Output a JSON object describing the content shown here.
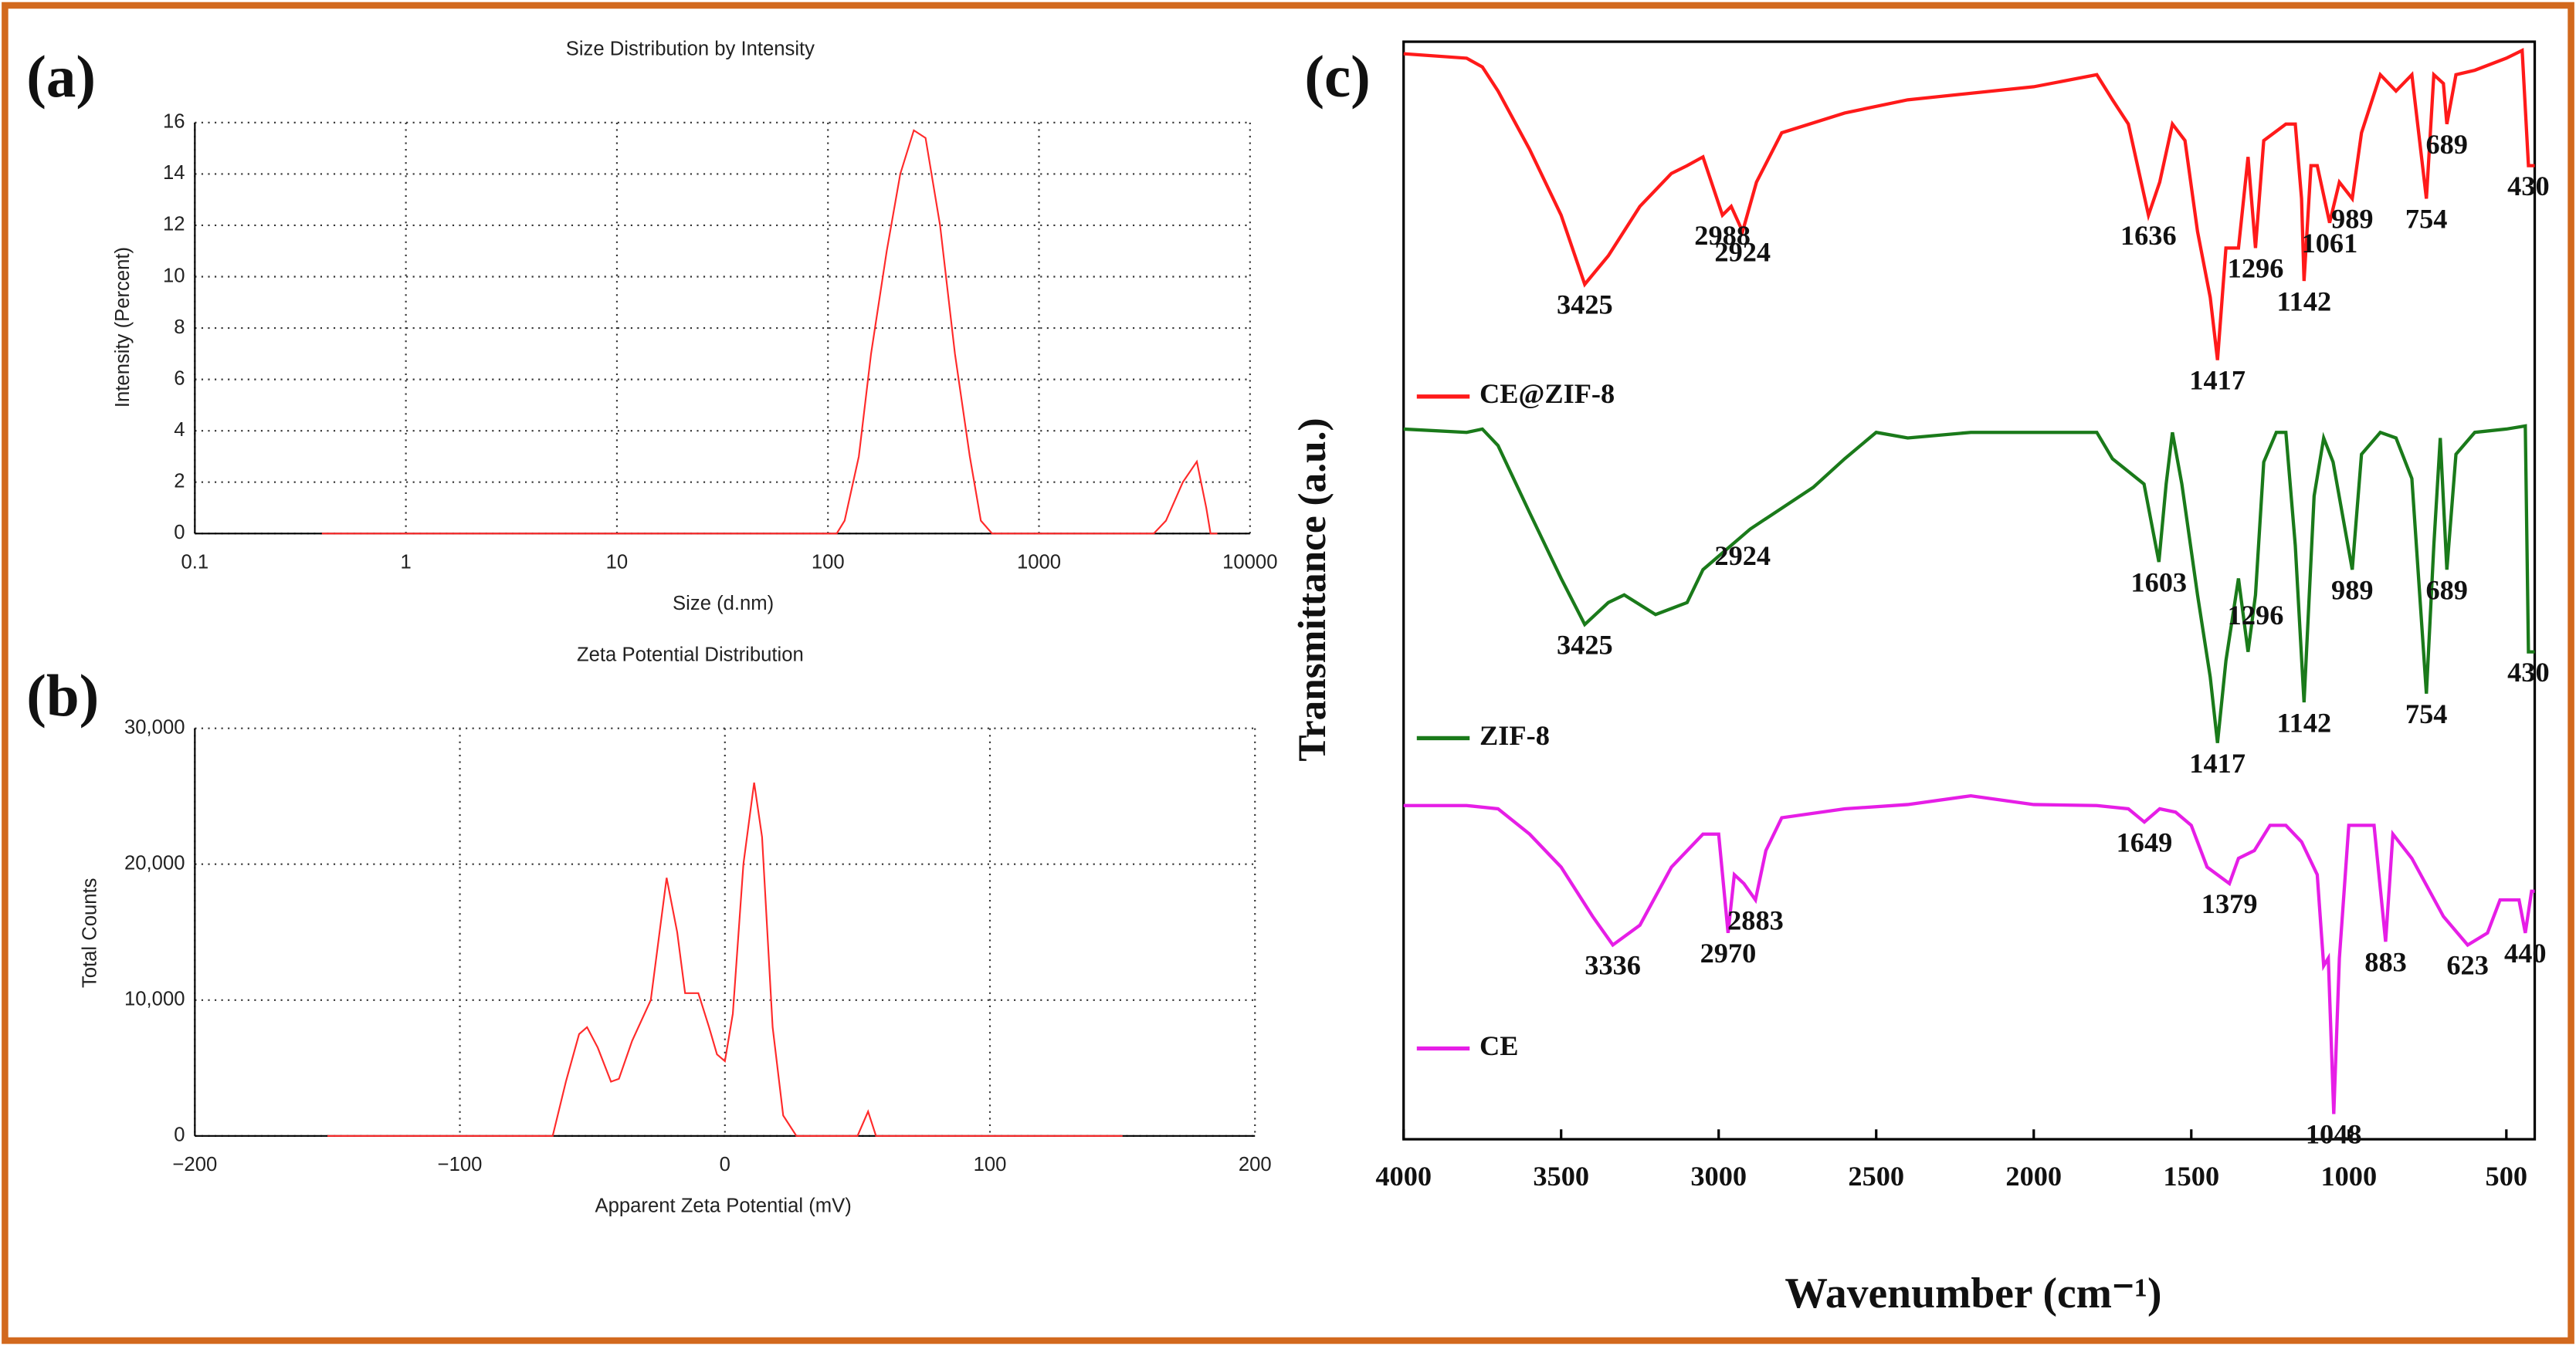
{
  "chart_data": [
    {
      "type": "line",
      "panel": "(a)",
      "title": "Size Distribution by Intensity",
      "x_label": "Size (d.nm)",
      "y_label": "Intensity (Percent)",
      "xscale": "log",
      "xlim": [
        0.1,
        10000
      ],
      "xticks": [
        0.1,
        1,
        10,
        100,
        1000,
        10000
      ],
      "ylim": [
        0,
        16
      ],
      "yticks": [
        0,
        2,
        4,
        6,
        8,
        10,
        12,
        14,
        16
      ],
      "grid": true,
      "color": "#ff2a2a",
      "x": [
        0.4,
        1,
        10,
        110,
        120,
        140,
        160,
        190,
        220,
        255,
        290,
        340,
        400,
        470,
        530,
        600,
        1000,
        3500,
        4000,
        4800,
        5600,
        6200,
        6500,
        7000
      ],
      "values": [
        0,
        0,
        0,
        0,
        0.5,
        3,
        7,
        11,
        14,
        15.7,
        15.4,
        12,
        7,
        3,
        0.5,
        0,
        0,
        0,
        0.5,
        2,
        2.8,
        1,
        0,
        0
      ]
    },
    {
      "type": "line",
      "panel": "(b)",
      "title": "Zeta Potential Distribution",
      "x_label": "Apparent Zeta Potential (mV)",
      "y_label": "Total Counts",
      "xlim": [
        -200,
        200
      ],
      "xticks": [
        {
          "value": -200,
          "label": "−200"
        },
        {
          "value": -100,
          "label": "−100"
        },
        0,
        100,
        200
      ],
      "ylim": [
        0,
        30000
      ],
      "yticks": [
        0,
        {
          "value": 10000,
          "label": "10,000"
        },
        {
          "value": 20000,
          "label": "20,000"
        },
        {
          "value": 30000,
          "label": "30,000"
        }
      ],
      "grid": true,
      "color": "#ff2a2a",
      "x": [
        -150,
        -65,
        -60,
        -55,
        -52,
        -48,
        -43,
        -40,
        -35,
        -28,
        -22,
        -18,
        -15,
        -10,
        -6,
        -3,
        0,
        3,
        7,
        11,
        14,
        18,
        22,
        27,
        50,
        54,
        57,
        150
      ],
      "values": [
        0,
        0,
        4000,
        7500,
        8000,
        6500,
        4000,
        4200,
        7000,
        10000,
        19000,
        15000,
        10500,
        10500,
        8000,
        6000,
        5500,
        9000,
        20000,
        26000,
        22000,
        8000,
        1500,
        0,
        0,
        1800,
        0,
        0
      ]
    },
    {
      "type": "line",
      "panel": "(c)",
      "x_label": "Wavenumber (cm⁻¹)",
      "y_label": "Transmittance (a.u.)",
      "xlim": [
        4000,
        410
      ],
      "xticks": [
        4000,
        3500,
        3000,
        2500,
        2000,
        1500,
        1000,
        500
      ],
      "ylim": [
        0,
        100
      ],
      "grid": false,
      "series": [
        {
          "name": "CE@ZIF-8",
          "color": "#ff1a1a",
          "x": [
            4000,
            3800,
            3750,
            3700,
            3600,
            3500,
            3425,
            3350,
            3250,
            3150,
            3100,
            3050,
            2988,
            2960,
            2924,
            2880,
            2800,
            2600,
            2400,
            2000,
            1800,
            1750,
            1700,
            1636,
            1600,
            1560,
            1520,
            1480,
            1440,
            1417,
            1390,
            1350,
            1320,
            1296,
            1270,
            1200,
            1170,
            1150,
            1142,
            1120,
            1100,
            1061,
            1030,
            989,
            960,
            900,
            850,
            800,
            754,
            730,
            700,
            689,
            660,
            600,
            500,
            450,
            430,
            410
          ],
          "values": [
            98.9,
            98.5,
            97.7,
            95.5,
            90.2,
            84.2,
            77.9,
            80.5,
            85.0,
            88.0,
            88.7,
            89.5,
            84.2,
            85.0,
            82.7,
            87.2,
            91.7,
            93.5,
            94.7,
            95.9,
            97.0,
            94.7,
            92.5,
            84.2,
            87.2,
            92.5,
            91.0,
            82.7,
            76.7,
            71.0,
            81.2,
            81.2,
            89.5,
            81.2,
            91.0,
            92.5,
            92.5,
            85.7,
            78.2,
            88.7,
            88.7,
            83.5,
            87.2,
            85.7,
            91.7,
            97.0,
            95.5,
            97.0,
            85.7,
            97.0,
            96.2,
            92.5,
            97.0,
            97.4,
            98.5,
            99.2,
            88.7,
            88.7
          ],
          "peaks": [
            3425,
            2988,
            2924,
            1636,
            1417,
            1296,
            1142,
            1061,
            989,
            754,
            689,
            430
          ]
        },
        {
          "name": "ZIF-8",
          "color": "#1a7a1a",
          "x": [
            4000,
            3800,
            3750,
            3700,
            3600,
            3500,
            3425,
            3350,
            3300,
            3200,
            3100,
            3050,
            2900,
            2700,
            2600,
            2500,
            2400,
            2200,
            2000,
            1800,
            1750,
            1650,
            1603,
            1580,
            1560,
            1530,
            1480,
            1440,
            1417,
            1390,
            1350,
            1320,
            1296,
            1270,
            1230,
            1200,
            1170,
            1142,
            1110,
            1080,
            1050,
            989,
            960,
            900,
            850,
            800,
            754,
            730,
            710,
            689,
            660,
            600,
            500,
            440,
            430,
            410
          ],
          "values": [
            64.7,
            64.4,
            64.7,
            63.2,
            57.1,
            51.1,
            46.9,
            48.9,
            49.6,
            47.8,
            48.9,
            51.9,
            55.6,
            59.4,
            62.0,
            64.4,
            63.9,
            64.4,
            64.4,
            64.4,
            62.0,
            59.7,
            52.6,
            59.7,
            64.4,
            59.7,
            49.6,
            42.1,
            36.1,
            43.6,
            51.1,
            44.4,
            49.6,
            61.7,
            64.4,
            64.4,
            54.1,
            39.8,
            58.6,
            63.9,
            61.7,
            51.9,
            62.4,
            64.4,
            63.9,
            60.2,
            40.6,
            54.1,
            63.9,
            51.9,
            62.4,
            64.4,
            64.7,
            65.0,
            44.4,
            44.4
          ],
          "peaks": [
            3425,
            2924,
            1603,
            1417,
            1296,
            1142,
            989,
            754,
            689,
            430
          ]
        },
        {
          "name": "CE",
          "color": "#e61ee6",
          "x": [
            4000,
            3800,
            3700,
            3600,
            3500,
            3400,
            3336,
            3250,
            3150,
            3050,
            3000,
            2970,
            2950,
            2920,
            2883,
            2850,
            2800,
            2600,
            2400,
            2200,
            2000,
            1800,
            1700,
            1649,
            1600,
            1550,
            1500,
            1450,
            1379,
            1350,
            1300,
            1250,
            1200,
            1150,
            1100,
            1080,
            1065,
            1048,
            1030,
            1000,
            950,
            920,
            883,
            860,
            800,
            700,
            623,
            560,
            520,
            460,
            440,
            420,
            410
          ],
          "values": [
            30.4,
            30.4,
            30.1,
            27.8,
            24.8,
            20.3,
            17.7,
            19.5,
            24.8,
            27.8,
            27.8,
            18.8,
            24.1,
            23.3,
            21.8,
            26.3,
            29.3,
            30.1,
            30.5,
            31.3,
            30.5,
            30.4,
            30.1,
            28.9,
            30.1,
            29.8,
            28.6,
            24.8,
            23.3,
            25.6,
            26.3,
            28.6,
            28.6,
            27.1,
            24.1,
            15.8,
            16.5,
            2.3,
            16.5,
            28.6,
            28.6,
            28.6,
            18.0,
            27.8,
            25.6,
            20.3,
            17.7,
            18.8,
            21.8,
            21.8,
            18.8,
            22.6,
            22.6
          ],
          "peaks": [
            3336,
            2970,
            2883,
            1649,
            1379,
            1048,
            883,
            623,
            440
          ]
        }
      ]
    }
  ]
}
